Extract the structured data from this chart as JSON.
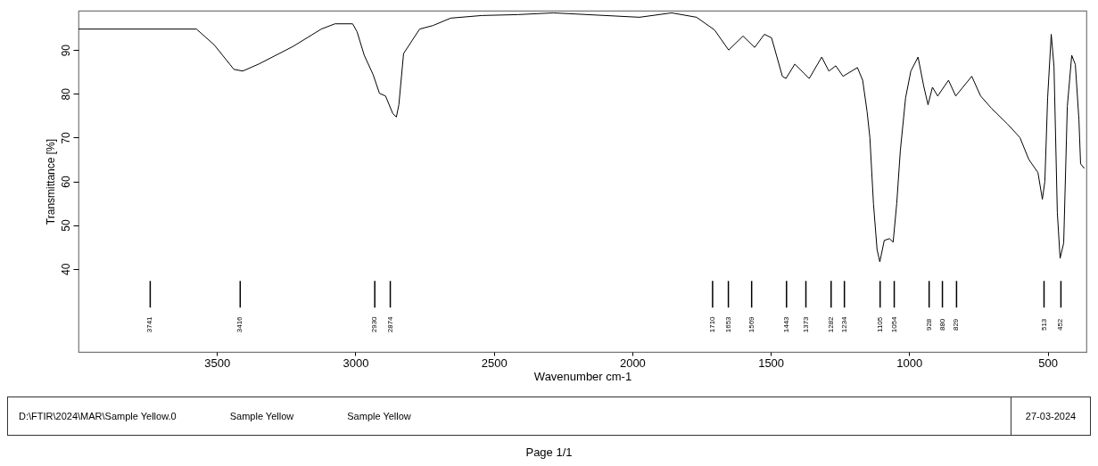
{
  "chart_data": {
    "type": "line",
    "xlabel": "Wavenumber cm-1",
    "ylabel": "Transmittance [%]",
    "xlim": [
      4000,
      360
    ],
    "ylim": [
      21,
      99
    ],
    "xticks": [
      3500,
      3000,
      2500,
      2000,
      1500,
      1000,
      500
    ],
    "yticks": [
      40,
      50,
      60,
      70,
      80,
      90
    ],
    "grid": false,
    "marker": "none",
    "line_style": "solid",
    "series": [
      {
        "color": "#000000",
        "x": [
          4000,
          3574,
          3510,
          3439,
          3407,
          3349,
          3226,
          3123,
          3074,
          3010,
          2994,
          2968,
          2936,
          2913,
          2891,
          2865,
          2852,
          2843,
          2826,
          2768,
          2720,
          2656,
          2543,
          2414,
          2285,
          1974,
          1858,
          1768,
          1703,
          1652,
          1600,
          1558,
          1523,
          1497,
          1458,
          1445,
          1413,
          1361,
          1316,
          1290,
          1265,
          1239,
          1187,
          1168,
          1152,
          1142,
          1129,
          1116,
          1106,
          1090,
          1071,
          1058,
          1045,
          1032,
          1013,
          994,
          968,
          948,
          932,
          916,
          897,
          858,
          832,
          774,
          742,
          703,
          645,
          600,
          568,
          535,
          519,
          510,
          500,
          487,
          477,
          465,
          455,
          442,
          429,
          413,
          400,
          387,
          381,
          368
        ],
        "values": [
          94.8,
          94.8,
          91.2,
          85.6,
          85.2,
          86.8,
          90.8,
          94.8,
          96.0,
          96.0,
          94.2,
          88.8,
          84.4,
          80.1,
          79.5,
          75.5,
          74.7,
          77.5,
          89.2,
          94.8,
          95.6,
          97.3,
          97.9,
          98.1,
          98.5,
          97.5,
          98.5,
          97.5,
          94.6,
          90.0,
          93.2,
          90.6,
          93.6,
          92.8,
          84.0,
          83.5,
          86.8,
          83.5,
          88.4,
          85.2,
          86.4,
          84.0,
          86.0,
          83.1,
          75.9,
          70.0,
          54.9,
          44.4,
          41.6,
          46.5,
          46.9,
          46.1,
          54.9,
          67.0,
          79.1,
          85.2,
          88.4,
          81.9,
          77.5,
          81.5,
          79.5,
          83.1,
          79.5,
          84.0,
          79.5,
          76.7,
          73.1,
          70.0,
          65.0,
          62.0,
          55.9,
          60.0,
          79.1,
          93.6,
          86.2,
          52.9,
          42.4,
          45.9,
          77.1,
          88.8,
          86.7,
          74.1,
          64.0,
          63.0
        ]
      }
    ],
    "annotations": [
      "3741",
      "3416",
      "2930",
      "2874",
      "1710",
      "1653",
      "1569",
      "1443",
      "1373",
      "1282",
      "1234",
      "1105",
      "1054",
      "928",
      "880",
      "829",
      "513",
      "452",
      "D:\\FTIR\\2024\\MAR\\Sample Yellow.0",
      "Sample Yellow",
      "Sample Yellow",
      "27-03-2024",
      "Page 1/1"
    ]
  }
}
